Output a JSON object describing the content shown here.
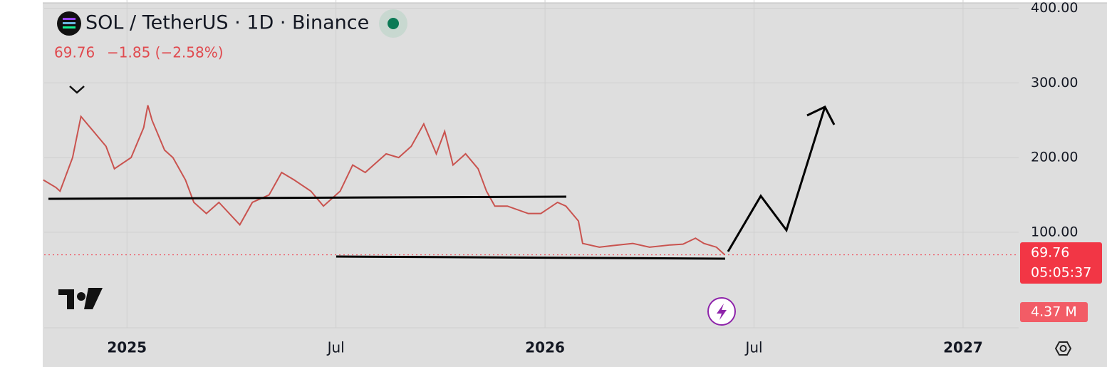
{
  "chart_data": {
    "type": "line",
    "title": "SOL / TetherUS · 1D · Binance",
    "last_price": "69.76",
    "change": "−1.85 (−2.58%)",
    "countdown": "05:05:37",
    "volume_label": "4.37 M",
    "x": [
      2024.8,
      2024.83,
      2024.84,
      2024.87,
      2024.89,
      2024.92,
      2024.95,
      2024.97,
      2025.01,
      2025.04,
      2025.05,
      2025.06,
      2025.09,
      2025.11,
      2025.14,
      2025.16,
      2025.19,
      2025.22,
      2025.27,
      2025.3,
      2025.34,
      2025.37,
      2025.4,
      2025.44,
      2025.47,
      2025.51,
      2025.54,
      2025.57,
      2025.62,
      2025.65,
      2025.68,
      2025.71,
      2025.74,
      2025.76,
      2025.78,
      2025.81,
      2025.84,
      2025.86,
      2025.88,
      2025.91,
      2025.96,
      2025.99,
      2026.03,
      2026.05,
      2026.08,
      2026.09,
      2026.13,
      2026.16,
      2026.21,
      2026.25,
      2026.3,
      2026.33,
      2026.36,
      2026.38,
      2026.41,
      2026.43
    ],
    "series": [
      {
        "name": "SOL / TetherUS",
        "color": "#c9534f",
        "values": [
          170,
          160,
          155,
          200,
          255,
          235,
          215,
          185,
          200,
          240,
          270,
          250,
          210,
          200,
          170,
          140,
          125,
          140,
          110,
          140,
          150,
          180,
          170,
          155,
          135,
          155,
          190,
          180,
          205,
          200,
          215,
          245,
          205,
          235,
          190,
          205,
          185,
          155,
          135,
          135,
          125,
          125,
          140,
          135,
          115,
          85,
          80,
          82,
          85,
          80,
          83,
          84,
          92,
          85,
          80,
          69.76
        ]
      }
    ],
    "xlim": [
      2024.802,
      2027.133
    ],
    "xticks": [
      2025,
      {
        "value": 2025.5,
        "label": "Jul"
      },
      2026,
      {
        "value": 2026.5,
        "label": "Jul"
      },
      2027
    ],
    "ylim": [
      -28,
      411
    ],
    "yticks": [
      {
        "value": 100,
        "label": "100.00"
      },
      {
        "value": 200,
        "label": "200.00"
      },
      {
        "value": 300,
        "label": "300.00"
      },
      {
        "value": 400,
        "label": "400.00"
      }
    ],
    "grid": true
  }
}
